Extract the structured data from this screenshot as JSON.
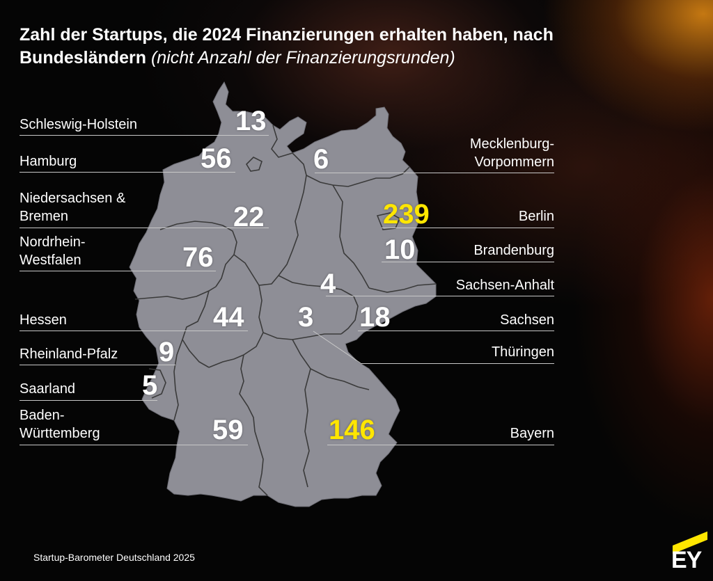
{
  "title": {
    "main": "Zahl der Startups, die 2024 Finanzierungen erhalten haben, nach Bundesländern",
    "subtitle": "(nicht Anzahl der Finanzierungsrunden)"
  },
  "states": [
    {
      "name": "Schleswig-Holstein",
      "value": "13",
      "highlight": false
    },
    {
      "name": "Hamburg",
      "value": "56",
      "highlight": false
    },
    {
      "name": "Niedersachsen & Bremen",
      "value": "22",
      "highlight": false
    },
    {
      "name": "Nordrhein-Westfalen",
      "value": "76",
      "highlight": false
    },
    {
      "name": "Hessen",
      "value": "44",
      "highlight": false
    },
    {
      "name": "Rheinland-Pfalz",
      "value": "9",
      "highlight": false
    },
    {
      "name": "Saarland",
      "value": "5",
      "highlight": false
    },
    {
      "name": "Baden-Württemberg",
      "value": "59",
      "highlight": false
    },
    {
      "name": "Mecklenburg-Vorpommern",
      "value": "6",
      "highlight": false
    },
    {
      "name": "Berlin",
      "value": "239",
      "highlight": true
    },
    {
      "name": "Brandenburg",
      "value": "10",
      "highlight": false
    },
    {
      "name": "Sachsen-Anhalt",
      "value": "4",
      "highlight": false
    },
    {
      "name": "Sachsen",
      "value": "18",
      "highlight": false
    },
    {
      "name": "Thüringen",
      "value": "3",
      "highlight": false
    },
    {
      "name": "Bayern",
      "value": "146",
      "highlight": true
    }
  ],
  "colors": {
    "highlight": "#ffe600",
    "map_fill": "#8e8e96",
    "border": "#3a3a3a",
    "text": "#ffffff"
  },
  "footer": "Startup-Barometer Deutschland 2025",
  "logo": "EY"
}
